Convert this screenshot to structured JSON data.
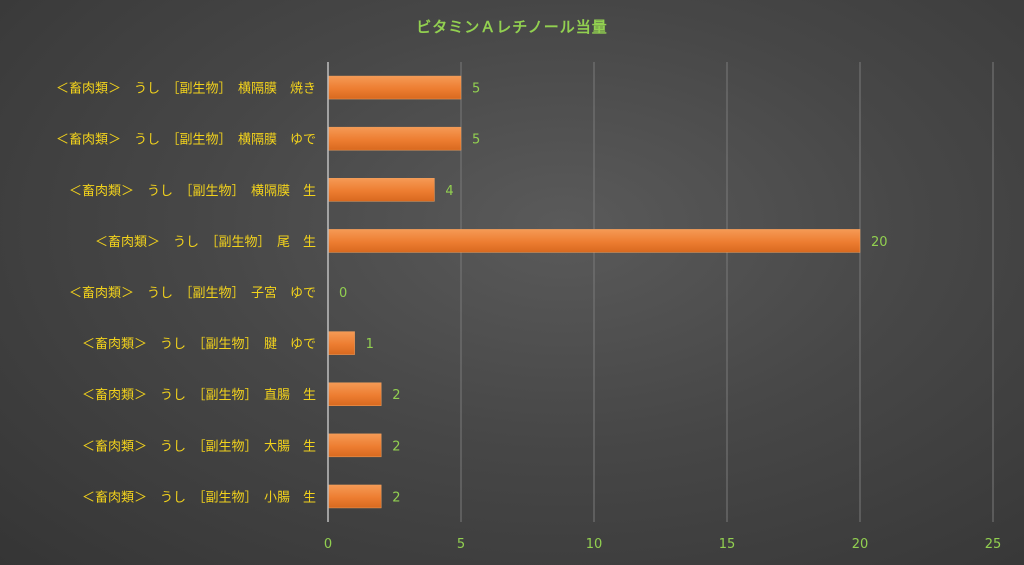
{
  "chart_data": {
    "type": "bar",
    "orientation": "horizontal",
    "title": "ビタミンＡレチノール当量",
    "categories": [
      "＜畜肉類＞　うし　［副生物］　横隔膜　焼き",
      "＜畜肉類＞　うし　［副生物］　横隔膜　ゆで",
      "＜畜肉類＞　うし　［副生物］　横隔膜　生",
      "＜畜肉類＞　うし　［副生物］　尾　生",
      "＜畜肉類＞　うし　［副生物］　子宮　ゆで",
      "＜畜肉類＞　うし　［副生物］　腱　ゆで",
      "＜畜肉類＞　うし　［副生物］　直腸　生",
      "＜畜肉類＞　うし　［副生物］　大腸　生",
      "＜畜肉類＞　うし　［副生物］　小腸　生"
    ],
    "values": [
      5,
      5,
      4,
      20,
      0,
      1,
      2,
      2,
      2
    ],
    "xlim": [
      0,
      25
    ],
    "x_ticks": [
      "0",
      "5",
      "10",
      "15",
      "20",
      "25"
    ],
    "grid": "vertical",
    "legend": "none",
    "colors": {
      "bar": "#ed7d31",
      "title": "#92d050",
      "category_labels": "#f2d21c",
      "tick_labels": "#92d050",
      "data_labels": "#92d050"
    }
  }
}
